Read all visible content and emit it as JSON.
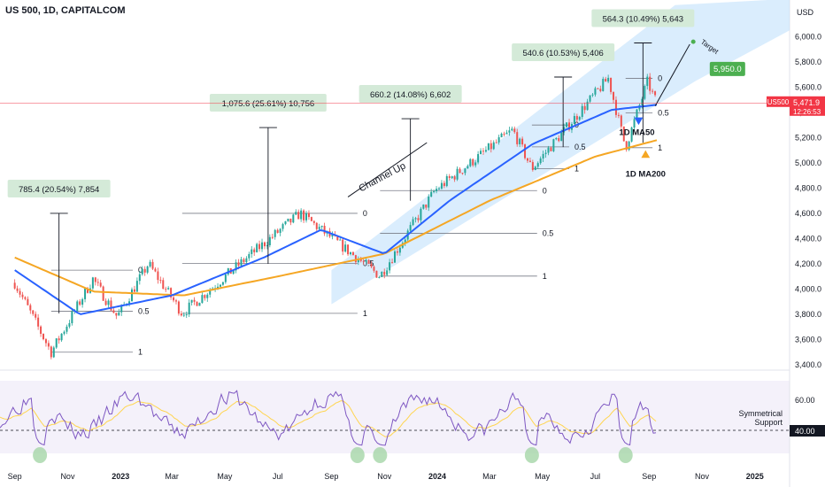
{
  "header": {
    "title": "US 500, 1D, CAPITALCOM",
    "currency": "USD"
  },
  "price_tag": {
    "symbol": "US500",
    "value": "5,471.9",
    "time": "12:26:53"
  },
  "rsi_tag": {
    "value": "40.00"
  },
  "colors": {
    "price_up": "#26a69a",
    "price_down": "#ef5350",
    "ma50": "#2962ff",
    "ma200": "#f5a623",
    "channel": "#bbdefb",
    "rsi": "#7e57c2",
    "rsi_ma": "#ffd54f",
    "callout_bg": "#d4ead8",
    "target": "#4caf50",
    "tag_red": "#f23645"
  },
  "annotations": {
    "channel_label": "Channel Up",
    "ma50_label": "1D MA50",
    "ma200_label": "1D MA200",
    "target_label": "Target",
    "target_value": "5,950.0",
    "symmetrical_support": "Symmetrical\nSupport",
    "callouts": [
      "785.4 (20.54%) 7,854",
      "1,075.6 (25.61%) 10,756",
      "660.2 (14.08%) 6,602",
      "540.6 (10.53%) 5,406",
      "564.3 (10.49%) 5,643"
    ],
    "fib_labels": [
      "0",
      "0.5",
      "1"
    ]
  },
  "chart_data": {
    "type": "line",
    "title": "US 500, 1D, CAPITALCOM",
    "x_ticks": [
      "Sep",
      "Nov",
      "2023",
      "Mar",
      "May",
      "Jul",
      "Sep",
      "Nov",
      "2024",
      "Mar",
      "May",
      "Jul",
      "Sep",
      "Nov",
      "2025"
    ],
    "y_ticks": [
      "6,000.0",
      "5,800.0",
      "5,600.0",
      "5,400.0",
      "5,200.0",
      "5,000.0",
      "4,800.0",
      "4,600.0",
      "4,400.0",
      "4,200.0",
      "4,000.0",
      "3,800.0",
      "3,600.0",
      "3,400.0"
    ],
    "ylim": [
      3400,
      6150
    ],
    "rsi_ticks": [
      "60.00",
      "40.00"
    ],
    "series": [
      {
        "name": "Price",
        "points": [
          [
            "2022-09-01",
            4050
          ],
          [
            "2022-10-13",
            3500
          ],
          [
            "2022-11-30",
            4080
          ],
          [
            "2022-12-28",
            3780
          ],
          [
            "2023-02-02",
            4200
          ],
          [
            "2023-03-13",
            3808
          ],
          [
            "2023-06-01",
            4280
          ],
          [
            "2023-07-27",
            4600
          ],
          [
            "2023-10-27",
            4103
          ],
          [
            "2023-12-29",
            4780
          ],
          [
            "2024-03-28",
            5260
          ],
          [
            "2024-04-19",
            4953
          ],
          [
            "2024-07-16",
            5670
          ],
          [
            "2024-08-05",
            5120
          ],
          [
            "2024-08-30",
            5640
          ],
          [
            "2024-09-10",
            5471
          ]
        ]
      },
      {
        "name": "1D MA50",
        "points": [
          [
            "2022-09-01",
            4150
          ],
          [
            "2022-11-15",
            3800
          ],
          [
            "2023-03-01",
            3950
          ],
          [
            "2023-06-15",
            4250
          ],
          [
            "2023-08-20",
            4470
          ],
          [
            "2023-11-01",
            4280
          ],
          [
            "2024-01-15",
            4700
          ],
          [
            "2024-04-20",
            5150
          ],
          [
            "2024-07-20",
            5420
          ],
          [
            "2024-09-10",
            5460
          ]
        ]
      },
      {
        "name": "1D MA200",
        "points": [
          [
            "2022-09-01",
            4250
          ],
          [
            "2022-12-01",
            3980
          ],
          [
            "2023-03-15",
            3950
          ],
          [
            "2023-07-01",
            4100
          ],
          [
            "2023-11-01",
            4280
          ],
          [
            "2024-03-01",
            4700
          ],
          [
            "2024-07-01",
            5050
          ],
          [
            "2024-09-10",
            5180
          ]
        ]
      }
    ],
    "fib_levels": [
      {
        "x0": "2022-10-13",
        "x1": "2023-01-15",
        "y0": 4150,
        "y1": 3500
      },
      {
        "x0": "2023-03-13",
        "x1": "2023-10-01",
        "y0": 4600,
        "y1": 3808
      },
      {
        "x0": "2023-10-27",
        "x1": "2024-04-25",
        "y0": 4780,
        "y1": 4103
      },
      {
        "x0": "2024-04-19",
        "x1": "2024-06-01",
        "y0": 5300,
        "y1": 4953
      },
      {
        "x0": "2024-08-05",
        "x1": "2024-09-05",
        "y0": 5670,
        "y1": 5120
      }
    ],
    "rsi": {
      "support": 40,
      "lows": [
        "2022-09-30",
        "2023-10-01",
        "2023-10-27",
        "2024-04-19",
        "2024-08-05"
      ]
    }
  }
}
